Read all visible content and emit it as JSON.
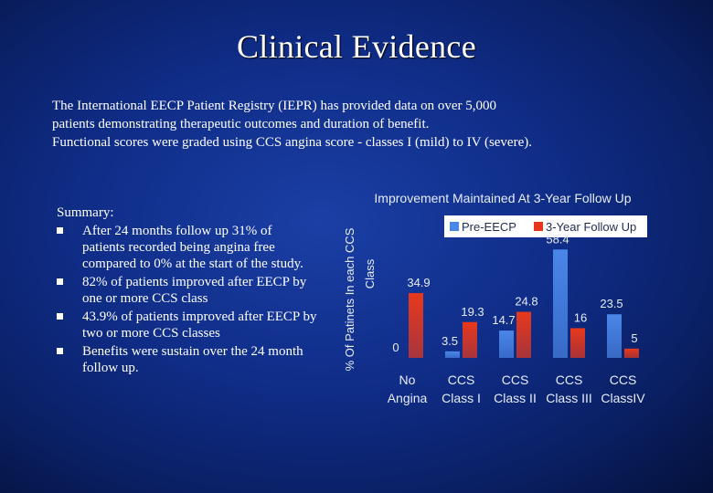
{
  "slide": {
    "title": "Clinical Evidence",
    "intro_lines": [
      "The International EECP Patient Registry (IEPR) has provided data on over 5,000",
      "patients demonstrating therapeutic outcomes and duration of benefit.",
      "Functional scores were graded using CCS angina score - classes I (mild) to IV (severe)."
    ],
    "summary_title": "Summary:",
    "summary_items": [
      "After 24 months follow up 31% of patients recorded being angina free compared to 0% at the start of the study.",
      "82% of patients improved after EECP by one or more CCS class",
      "43.9% of patients improved after EECP by two or more CCS classes",
      "Benefits were sustain over the 24 month follow up."
    ]
  },
  "chart_data": {
    "type": "bar",
    "title": "Improvement Maintained At 3-Year Follow Up",
    "ylabel": "% Of Patinets  In each CCS Class",
    "categories": [
      [
        "No",
        "Angina"
      ],
      [
        "CCS",
        "Class I"
      ],
      [
        "CCS",
        "Class II"
      ],
      [
        "CCS",
        "Class III"
      ],
      [
        "CCS",
        "ClassIV"
      ]
    ],
    "series": [
      {
        "name": "Pre-EECP",
        "values": [
          0,
          3.5,
          14.7,
          58.4,
          23.5
        ],
        "color": "#4a86e8"
      },
      {
        "name": "3-Year Follow Up",
        "values": [
          34.9,
          19.3,
          24.8,
          16,
          5
        ],
        "color": "#e8381c"
      }
    ],
    "ylim": [
      0,
      60
    ],
    "grid": false,
    "legend_position": "top"
  }
}
